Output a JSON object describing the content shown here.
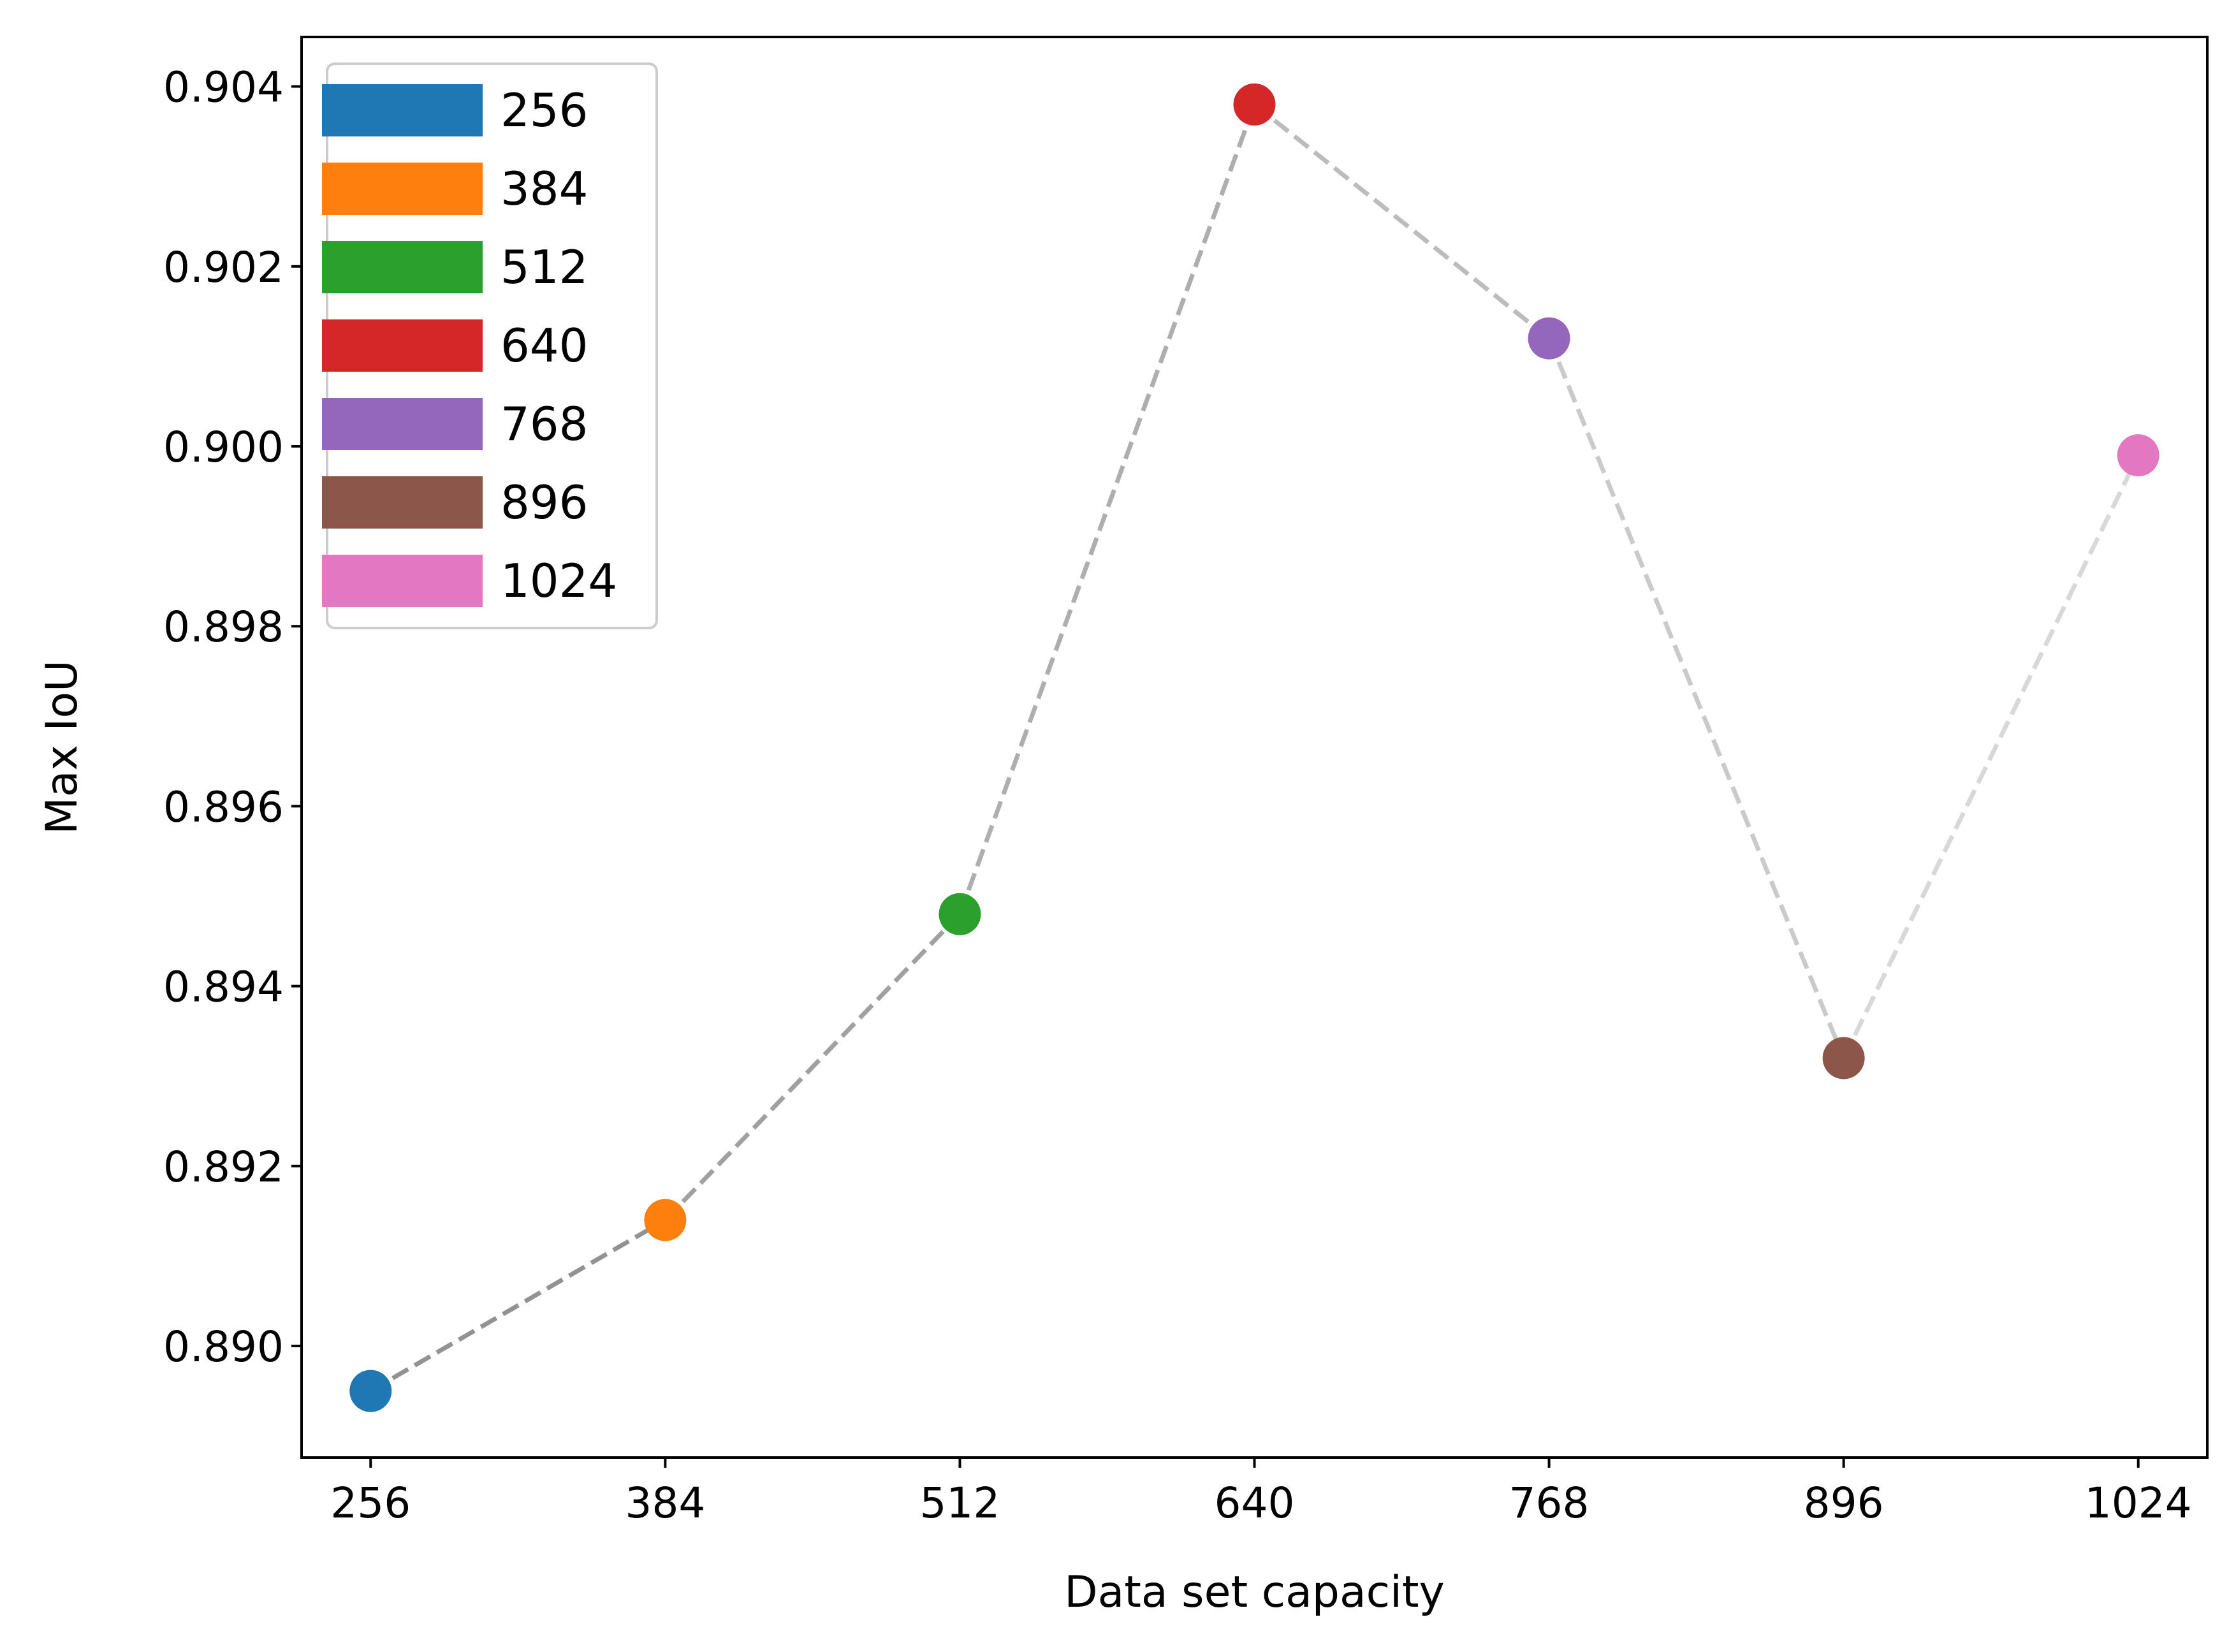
{
  "chart_data": {
    "type": "scatter",
    "xlabel": "Data set capacity",
    "ylabel": "Max IoU",
    "xlim": [
      226,
      1054
    ],
    "ylim": [
      0.88876,
      0.90455
    ],
    "x_ticks": [
      "256",
      "384",
      "512",
      "640",
      "768",
      "896",
      "1024"
    ],
    "x_tick_values": [
      256,
      384,
      512,
      640,
      768,
      896,
      1024
    ],
    "y_ticks": [
      "0.890",
      "0.892",
      "0.894",
      "0.896",
      "0.898",
      "0.900",
      "0.902",
      "0.904"
    ],
    "y_tick_values": [
      0.89,
      0.892,
      0.894,
      0.896,
      0.898,
      0.9,
      0.902,
      0.904
    ],
    "grid": false,
    "legend_position": "top-left",
    "connector": {
      "style": "dashed",
      "color": "#7f7f7f",
      "opacity_start": 0.85,
      "opacity_end": 0.3
    },
    "series": [
      {
        "name": "256",
        "x": 256,
        "y": 0.8895,
        "color": "#1f77b4"
      },
      {
        "name": "384",
        "x": 384,
        "y": 0.8914,
        "color": "#ff7f0e"
      },
      {
        "name": "512",
        "x": 512,
        "y": 0.8948,
        "color": "#2ca02c"
      },
      {
        "name": "640",
        "x": 640,
        "y": 0.9038,
        "color": "#d62728"
      },
      {
        "name": "768",
        "x": 768,
        "y": 0.9012,
        "color": "#9467bd"
      },
      {
        "name": "896",
        "x": 896,
        "y": 0.8932,
        "color": "#8c564b"
      },
      {
        "name": "1024",
        "x": 1024,
        "y": 0.8999,
        "color": "#e377c2"
      }
    ]
  }
}
